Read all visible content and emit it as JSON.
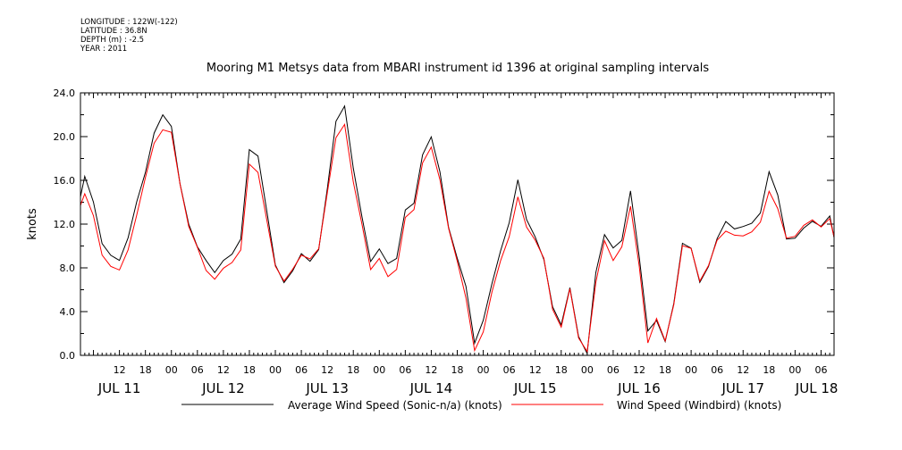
{
  "header": {
    "meta_lines": [
      "LONGITUDE : 122W(-122)",
      "LATITUDE : 36.8N",
      "DEPTH (m) : -2.5",
      "YEAR : 2011"
    ]
  },
  "chart_data": {
    "type": "line",
    "title": "Mooring M1 Metsys data from MBARI instrument id 1396 at original sampling intervals",
    "ylabel": "knots",
    "xlabel": "",
    "ylim": [
      0,
      24
    ],
    "y_ticks": [
      "0.0",
      "4.0",
      "8.0",
      "12.0",
      "16.0",
      "20.0",
      "24.0"
    ],
    "x_unit": "hours from Jul 11 00:00 (2011)",
    "xlim": [
      3,
      177
    ],
    "x_hour_ticks": [
      {
        "x": 12,
        "label": "12"
      },
      {
        "x": 18,
        "label": "18"
      },
      {
        "x": 24,
        "label": "00"
      },
      {
        "x": 30,
        "label": "06"
      },
      {
        "x": 36,
        "label": "12"
      },
      {
        "x": 42,
        "label": "18"
      },
      {
        "x": 48,
        "label": "00"
      },
      {
        "x": 54,
        "label": "06"
      },
      {
        "x": 60,
        "label": "12"
      },
      {
        "x": 66,
        "label": "18"
      },
      {
        "x": 72,
        "label": "00"
      },
      {
        "x": 78,
        "label": "06"
      },
      {
        "x": 84,
        "label": "12"
      },
      {
        "x": 90,
        "label": "18"
      },
      {
        "x": 96,
        "label": "00"
      },
      {
        "x": 102,
        "label": "06"
      },
      {
        "x": 108,
        "label": "12"
      },
      {
        "x": 114,
        "label": "18"
      },
      {
        "x": 120,
        "label": "00"
      },
      {
        "x": 126,
        "label": "06"
      },
      {
        "x": 132,
        "label": "12"
      },
      {
        "x": 138,
        "label": "18"
      },
      {
        "x": 144,
        "label": "00"
      },
      {
        "x": 150,
        "label": "06"
      },
      {
        "x": 156,
        "label": "12"
      },
      {
        "x": 162,
        "label": "18"
      },
      {
        "x": 168,
        "label": "00"
      },
      {
        "x": 174,
        "label": "06"
      }
    ],
    "x_day_labels": [
      {
        "x": 12,
        "label": "JUL 11"
      },
      {
        "x": 36,
        "label": "JUL 12"
      },
      {
        "x": 60,
        "label": "JUL 13"
      },
      {
        "x": 84,
        "label": "JUL 14"
      },
      {
        "x": 108,
        "label": "JUL 15"
      },
      {
        "x": 132,
        "label": "JUL 16"
      },
      {
        "x": 156,
        "label": "JUL 17"
      },
      {
        "x": 173,
        "label": "JUL 18"
      }
    ],
    "legend_position": "bottom",
    "series": [
      {
        "name": "Average Wind Speed (Sonic-n/a) (knots)",
        "color": "#000000",
        "x": [
          3,
          4,
          6,
          8,
          10,
          12,
          14,
          16,
          18,
          20,
          22,
          24,
          26,
          28,
          30,
          32,
          34,
          36,
          38,
          40,
          42,
          44,
          46,
          48,
          50,
          52,
          54,
          56,
          58,
          60,
          62,
          64,
          66,
          68,
          70,
          72,
          74,
          76,
          78,
          80,
          82,
          84,
          86,
          88,
          90,
          92,
          94,
          96,
          98,
          100,
          102,
          104,
          106,
          108,
          110,
          112,
          114,
          116,
          118,
          120,
          122,
          124,
          126,
          128,
          130,
          132,
          134,
          136,
          138,
          140,
          142,
          144,
          146,
          148,
          150,
          152,
          154,
          156,
          158,
          160,
          162,
          164,
          166,
          168,
          170,
          172,
          174,
          176,
          177
        ],
        "y": [
          14.5,
          16.0,
          14.0,
          10.0,
          9.0,
          8.5,
          10.5,
          14.0,
          17.0,
          20.5,
          22.0,
          21.0,
          16.0,
          12.0,
          10.0,
          8.5,
          7.2,
          8.5,
          9.0,
          10.5,
          18.5,
          18.0,
          13.0,
          8.5,
          7.0,
          8.0,
          9.5,
          9.0,
          10.0,
          15.5,
          21.0,
          22.5,
          17.0,
          12.5,
          8.5,
          9.5,
          8.0,
          8.5,
          13.5,
          14.0,
          18.5,
          20.0,
          17.0,
          12.0,
          9.0,
          6.0,
          1.0,
          3.0,
          6.5,
          9.5,
          12.0,
          16.0,
          12.5,
          11.0,
          9.0,
          4.5,
          3.0,
          6.5,
          2.0,
          0.5,
          7.5,
          11.0,
          9.5,
          10.5,
          15.0,
          9.0,
          2.0,
          3.5,
          1.5,
          5.0,
          10.5,
          10.0,
          7.0,
          8.5,
          11.0,
          12.0,
          11.5,
          11.5,
          12.0,
          13.0,
          16.5,
          14.5,
          11.0,
          11.0,
          12.0,
          12.5,
          12.0,
          13.0,
          11.0
        ]
      },
      {
        "name": "Wind Speed (Windbird) (knots)",
        "color": "#ff0000",
        "x": [
          3,
          4,
          6,
          8,
          10,
          12,
          14,
          16,
          18,
          20,
          22,
          24,
          26,
          28,
          30,
          32,
          34,
          36,
          38,
          40,
          42,
          44,
          46,
          48,
          50,
          52,
          54,
          56,
          58,
          60,
          62,
          64,
          66,
          68,
          70,
          72,
          74,
          76,
          78,
          80,
          82,
          84,
          86,
          88,
          90,
          92,
          94,
          96,
          98,
          100,
          102,
          104,
          106,
          108,
          110,
          112,
          114,
          116,
          118,
          120,
          122,
          124,
          126,
          128,
          130,
          132,
          134,
          136,
          138,
          140,
          142,
          144,
          146,
          148,
          150,
          152,
          154,
          156,
          158,
          160,
          162,
          164,
          166,
          168,
          170,
          172,
          174,
          176,
          177
        ],
        "y": [
          13.5,
          15.0,
          13.0,
          9.5,
          8.5,
          8.0,
          10.0,
          13.0,
          16.0,
          19.0,
          20.5,
          20.0,
          15.5,
          11.5,
          9.5,
          8.0,
          7.0,
          8.0,
          8.5,
          10.0,
          17.5,
          17.0,
          12.5,
          8.0,
          6.5,
          7.5,
          9.0,
          8.5,
          9.5,
          14.5,
          20.0,
          21.5,
          16.0,
          12.0,
          8.0,
          9.0,
          7.5,
          8.0,
          12.5,
          13.0,
          17.5,
          19.0,
          16.0,
          11.5,
          8.5,
          5.5,
          0.8,
          2.5,
          6.0,
          9.0,
          11.0,
          14.5,
          12.0,
          10.5,
          8.5,
          4.0,
          2.5,
          6.0,
          1.5,
          0.3,
          7.0,
          10.5,
          9.0,
          10.0,
          14.0,
          8.5,
          1.5,
          3.0,
          1.0,
          4.5,
          10.0,
          9.5,
          6.5,
          8.0,
          10.5,
          11.5,
          11.0,
          11.0,
          11.5,
          12.5,
          15.0,
          13.5,
          10.5,
          10.5,
          11.5,
          12.0,
          11.5,
          12.5,
          10.5
        ]
      }
    ]
  }
}
